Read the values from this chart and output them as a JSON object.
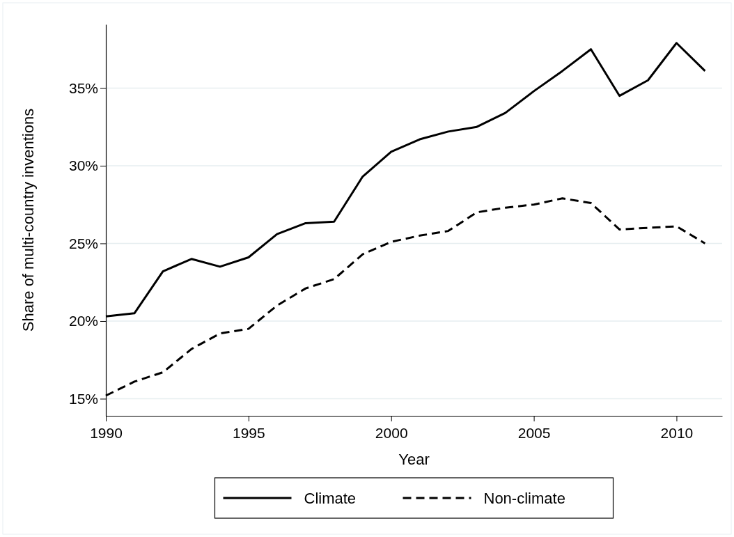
{
  "chart_data": {
    "type": "line",
    "xlabel": "Year",
    "ylabel": "Share of multi-country inventions",
    "x": [
      1990,
      1991,
      1992,
      1993,
      1994,
      1995,
      1996,
      1997,
      1998,
      1999,
      2000,
      2001,
      2002,
      2003,
      2004,
      2005,
      2006,
      2007,
      2008,
      2009,
      2010,
      2011
    ],
    "series": [
      {
        "name": "Climate",
        "color": "#000000",
        "line_style": "solid",
        "values": [
          20.3,
          20.5,
          23.2,
          24.0,
          23.5,
          24.1,
          25.6,
          26.3,
          26.4,
          29.3,
          30.9,
          31.7,
          32.2,
          32.5,
          33.4,
          34.8,
          36.1,
          37.5,
          34.5,
          35.5,
          37.9,
          36.1
        ]
      },
      {
        "name": "Non-climate",
        "color": "#000000",
        "line_style": "dashed",
        "values": [
          15.2,
          16.1,
          16.7,
          18.2,
          19.2,
          19.5,
          21.0,
          22.1,
          22.7,
          24.3,
          25.1,
          25.5,
          25.8,
          27.0,
          27.3,
          27.5,
          27.9,
          27.6,
          25.9,
          26.0,
          26.1,
          25.0
        ]
      }
    ],
    "xlim": [
      1990,
      2011.6
    ],
    "xticks": [
      1990,
      1995,
      2000,
      2005,
      2010
    ],
    "ylim": [
      13.9,
      39.1
    ],
    "yticks": [
      {
        "value": 15,
        "label": "15%"
      },
      {
        "value": 20,
        "label": "20%"
      },
      {
        "value": 25,
        "label": "25%"
      },
      {
        "value": 30,
        "label": "30%"
      },
      {
        "value": 35,
        "label": "35%"
      }
    ],
    "grid": "y",
    "legend": "bottom"
  }
}
